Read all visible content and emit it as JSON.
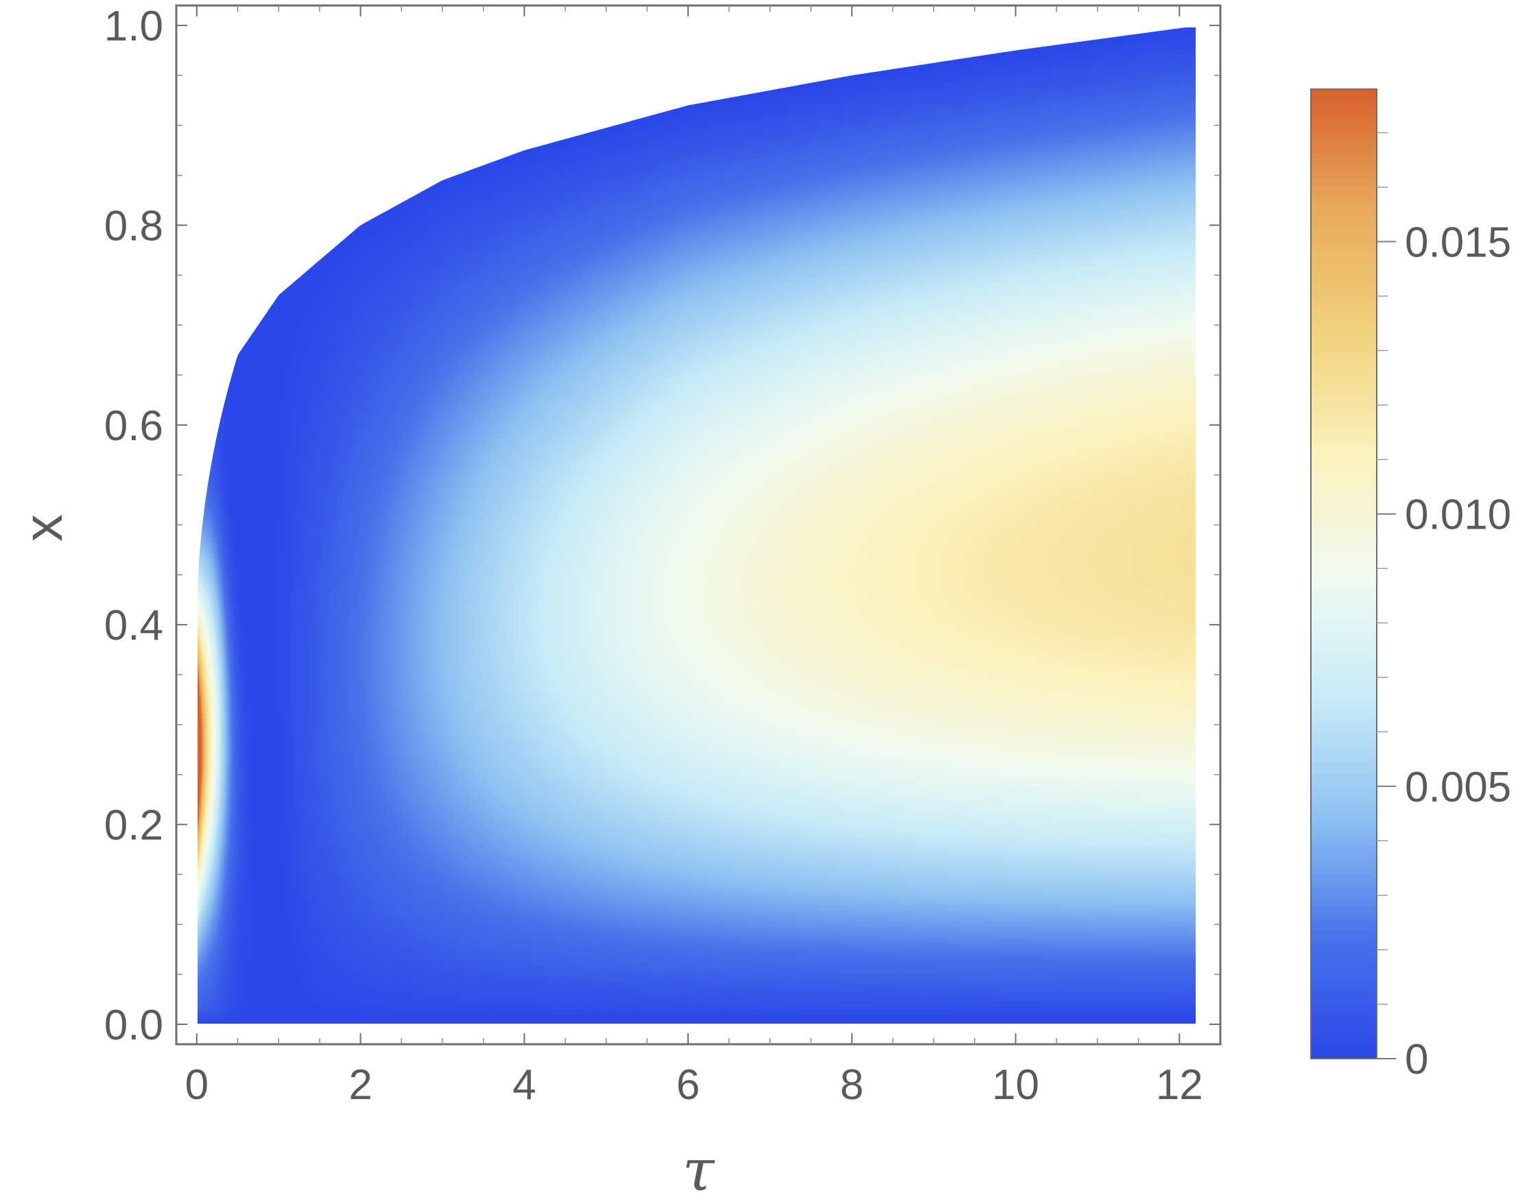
{
  "chart_data": {
    "type": "heatmap",
    "xlabel": "τ",
    "ylabel": "x",
    "xlim": [
      -0.25,
      12.5
    ],
    "ylim": [
      -0.02,
      1.02
    ],
    "x_ticks": [
      0,
      2,
      4,
      6,
      8,
      10,
      12
    ],
    "x_tick_labels": [
      "0",
      "2",
      "4",
      "6",
      "8",
      "10",
      "12"
    ],
    "y_ticks": [
      0.0,
      0.2,
      0.4,
      0.6,
      0.8,
      1.0
    ],
    "y_tick_labels": [
      "0.0",
      "0.2",
      "0.4",
      "0.6",
      "0.8",
      "1.0"
    ],
    "tau_max": 12.25,
    "boundary": {
      "tau": [
        0,
        0.2,
        0.5,
        1,
        2,
        3,
        4,
        6,
        8,
        10,
        12.25
      ],
      "x_upper": [
        0.4,
        0.6,
        0.67,
        0.73,
        0.8,
        0.845,
        0.875,
        0.92,
        0.95,
        0.975,
        1.0
      ]
    },
    "colorbar": {
      "range": [
        0,
        0.0178
      ],
      "ticks": [
        0,
        0.005,
        0.01,
        0.015
      ],
      "tick_labels": [
        "0",
        "0.005",
        "0.010",
        "0.015"
      ],
      "colors": [
        "#2a48e8",
        "#4a72ea",
        "#8fc2f2",
        "#c9ecf7",
        "#f2fbf0",
        "#fbf1bb",
        "#f1d27c",
        "#e8aa5c",
        "#d8602c"
      ]
    },
    "grid": false,
    "legend": "colorbar-right"
  }
}
